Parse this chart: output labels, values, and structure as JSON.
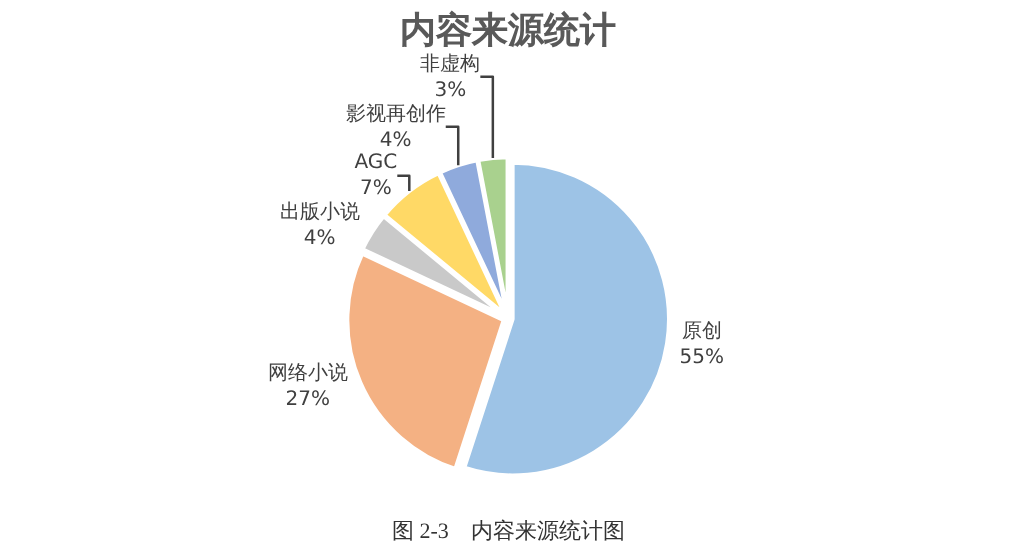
{
  "chart_data": {
    "type": "pie",
    "title": "内容来源统计",
    "categories": [
      "原创",
      "网络小说",
      "出版小说",
      "AGC",
      "影视再创作",
      "非虚构"
    ],
    "values": [
      55,
      27,
      4,
      7,
      4,
      3
    ],
    "value_labels": [
      "55%",
      "27%",
      "4%",
      "7%",
      "4%",
      "3%"
    ],
    "colors": [
      "#9dc3e6",
      "#f4b183",
      "#c9c9c9",
      "#ffd966",
      "#8faadc",
      "#a9d18e"
    ],
    "legend": false,
    "annotations": [
      "图 2-3    内容来源统计图"
    ]
  }
}
